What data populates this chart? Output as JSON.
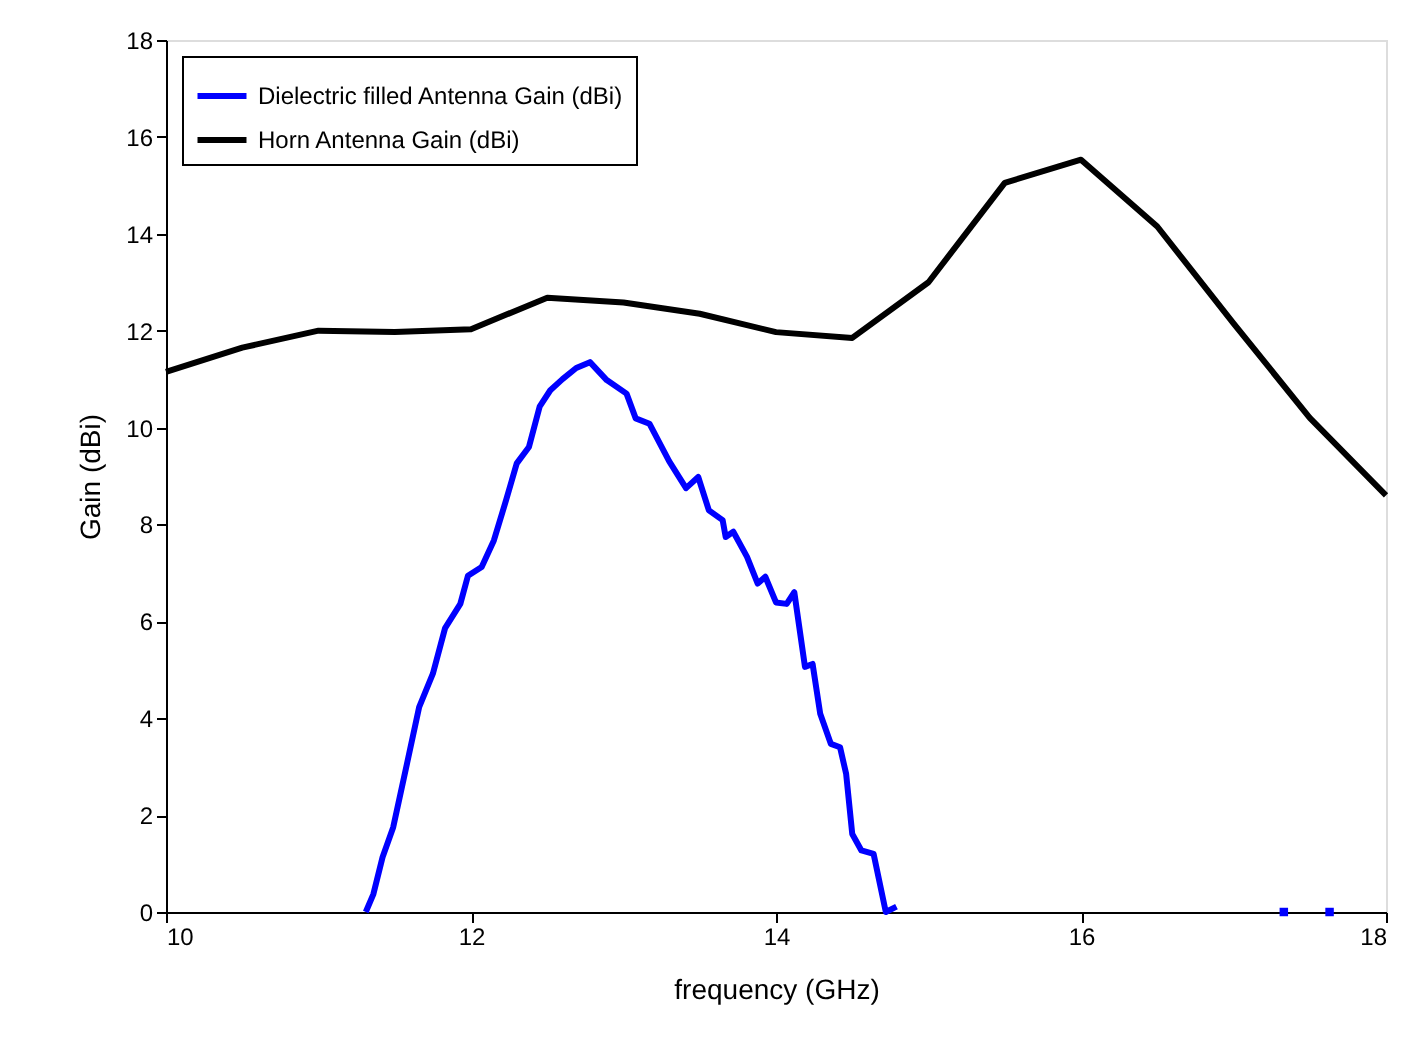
{
  "chart_data": {
    "type": "line",
    "xlabel": "frequency (GHz)",
    "ylabel": "Gain (dBi)",
    "xlim": [
      10,
      18
    ],
    "ylim": [
      0,
      18
    ],
    "xticks": [
      10,
      12,
      14,
      16,
      18
    ],
    "yticks": [
      0,
      2,
      4,
      6,
      8,
      10,
      12,
      14,
      16,
      18
    ],
    "grid": false,
    "legend": "top left",
    "line_style": "solid",
    "marker": "none",
    "series": [
      {
        "name": "Dielectric filled Antenna Gain (dBi)",
        "color": "#0000ff",
        "x": [
          11.31,
          11.36,
          11.42,
          11.49,
          11.58,
          11.66,
          11.75,
          11.83,
          11.93,
          11.98,
          12.07,
          12.15,
          12.23,
          12.3,
          12.38,
          12.45,
          12.52,
          12.6,
          12.69,
          12.78,
          12.89,
          13.02,
          13.08,
          13.17,
          13.3,
          13.41,
          13.49,
          13.56,
          13.65,
          13.67,
          13.72,
          13.81,
          13.88,
          13.93,
          14.0,
          14.07,
          14.12,
          14.19,
          14.24,
          14.29,
          14.36,
          14.42,
          14.46,
          14.5,
          14.56,
          14.64,
          14.72,
          14.79
        ],
        "values": [
          0,
          0.37,
          1.13,
          1.75,
          3.06,
          4.23,
          4.92,
          5.86,
          6.36,
          6.94,
          7.12,
          7.67,
          8.5,
          9.26,
          9.6,
          10.43,
          10.77,
          11.0,
          11.23,
          11.35,
          10.98,
          10.7,
          10.19,
          10.08,
          9.3,
          8.75,
          8.98,
          8.29,
          8.09,
          7.74,
          7.85,
          7.33,
          6.78,
          6.92,
          6.39,
          6.36,
          6.6,
          5.06,
          5.12,
          4.09,
          3.47,
          3.4,
          2.85,
          1.61,
          1.27,
          1.2,
          0,
          0.11
        ]
      },
      {
        "type": "scatter",
        "marker": "square",
        "color": "#0000ff",
        "x": [
          17.33,
          17.63
        ],
        "values": [
          0,
          0
        ]
      },
      {
        "name": "Horn Antenna Gain (dBi)",
        "color": "#000000",
        "x": [
          10,
          10.5,
          11,
          11.5,
          12,
          12.5,
          13,
          13.5,
          14,
          14.5,
          15,
          15.5,
          16,
          16.5,
          17,
          17.5,
          18
        ],
        "values": [
          11.15,
          11.65,
          12.0,
          11.97,
          12.03,
          12.68,
          12.58,
          12.35,
          11.97,
          11.85,
          13.0,
          15.05,
          15.53,
          14.15,
          12.15,
          10.2,
          8.6
        ]
      }
    ]
  }
}
